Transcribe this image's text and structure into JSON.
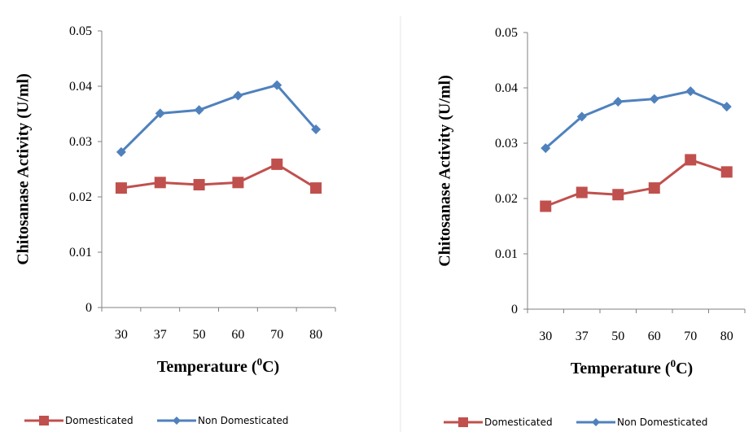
{
  "colors": {
    "domesticated": "#C0504D",
    "non_domesticated": "#4F81BD",
    "axis": "#808080",
    "divider": "#e6e6e6"
  },
  "chart_data": [
    {
      "type": "line",
      "xlabel_main": "Temperature (",
      "xlabel_sup": "0",
      "xlabel_end": "C)",
      "ylabel": "Chitosanase Activity (U/ml)",
      "categories": [
        "30",
        "37",
        "50",
        "60",
        "70",
        "80"
      ],
      "ylim": [
        0,
        0.05
      ],
      "yticks": [
        "0",
        "0.01",
        "0.02",
        "0.03",
        "0.04",
        "0.05"
      ],
      "grid": false,
      "legend_position": "bottom",
      "series": [
        {
          "name": "Domesticated",
          "marker": "square",
          "values": [
            0.0216,
            0.0226,
            0.0222,
            0.0226,
            0.0259,
            0.0216
          ]
        },
        {
          "name": "Non Domesticated",
          "marker": "diamond",
          "values": [
            0.0281,
            0.0351,
            0.0357,
            0.0383,
            0.0402,
            0.0322
          ]
        }
      ]
    },
    {
      "type": "line",
      "xlabel_main": "Temperature (",
      "xlabel_sup": "0",
      "xlabel_end": "C)",
      "ylabel": "Chitosanase Activity (U/ml)",
      "categories": [
        "30",
        "37",
        "50",
        "60",
        "70",
        "80"
      ],
      "ylim": [
        0,
        0.05
      ],
      "yticks": [
        "0",
        "0.01",
        "0.02",
        "0.03",
        "0.04",
        "0.05"
      ],
      "grid": false,
      "legend_position": "bottom",
      "series": [
        {
          "name": "Domesticated",
          "marker": "square",
          "values": [
            0.0186,
            0.0211,
            0.0207,
            0.0219,
            0.027,
            0.0248
          ]
        },
        {
          "name": "Non Domesticated",
          "marker": "diamond",
          "values": [
            0.0291,
            0.0348,
            0.0375,
            0.038,
            0.0394,
            0.0366
          ]
        }
      ]
    }
  ]
}
